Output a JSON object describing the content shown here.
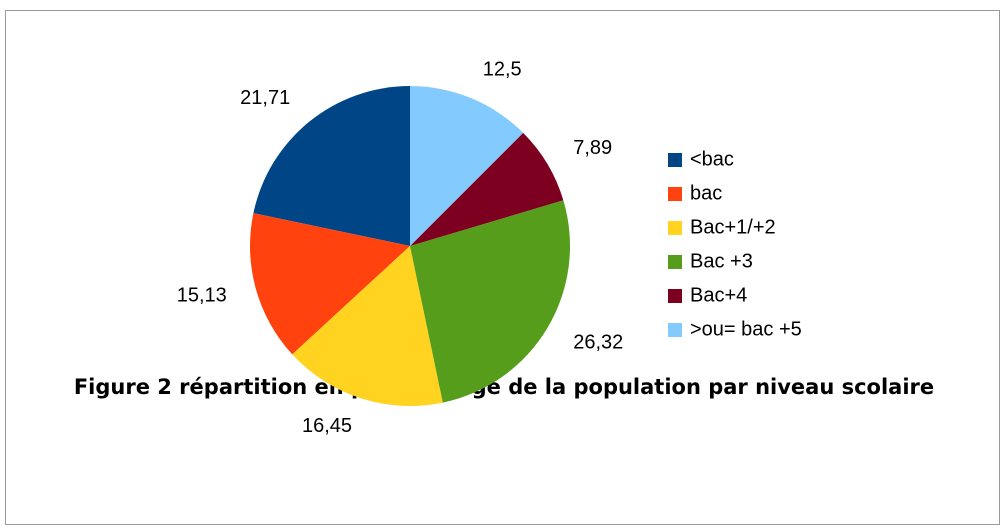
{
  "chart_data": {
    "type": "pie",
    "caption": "Figure 2 répartition en pourcentage de la population par niveau scolaire",
    "categories": [
      "<bac",
      "bac",
      "Bac+1/+2",
      "Bac +3",
      "Bac+4",
      ">ou= bac +5"
    ],
    "values": [
      21.71,
      15.13,
      16.45,
      26.32,
      7.89,
      12.5
    ],
    "value_labels": [
      "21,71",
      "15,13",
      "16,45",
      "26,32",
      "7,89",
      "12,5"
    ],
    "colors": [
      "#004586",
      "#ff420e",
      "#ffd320",
      "#579d1c",
      "#7e0021",
      "#83caff"
    ],
    "legend": "right"
  }
}
